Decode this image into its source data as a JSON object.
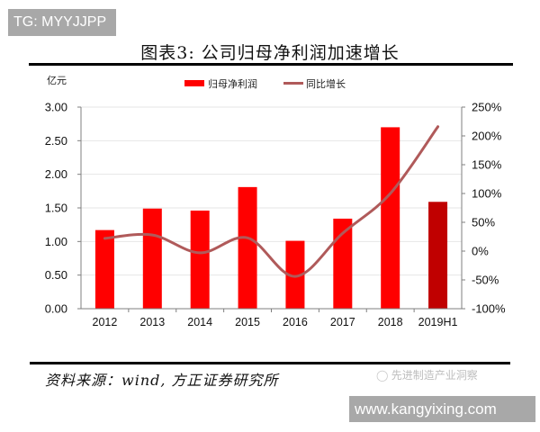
{
  "watermarks": {
    "top_left": "TG: MYYJJPP",
    "bottom_right": "www.kangyixing.com",
    "wechat_account": "先进制造产业洞察"
  },
  "header": {
    "title": "图表3:  公司归母净利润加速增长"
  },
  "footer": {
    "source": "资料来源：wind, 方正证券研究所"
  },
  "colors": {
    "bar": "#ff0000",
    "bar_highlight": "#c00000",
    "line": "#b05a5a",
    "grid": "#e6e6e6",
    "axis": "#7f7f7f"
  },
  "chart_data": {
    "type": "bar",
    "title": "公司归母净利润加速增长",
    "xlabel": "",
    "ylabel": "亿元",
    "y2label": "",
    "categories": [
      "2012",
      "2013",
      "2014",
      "2015",
      "2016",
      "2017",
      "2018",
      "2019H1"
    ],
    "series": [
      {
        "name": "归母净利润",
        "type": "bar",
        "axis": "left",
        "values": [
          1.17,
          1.49,
          1.46,
          1.81,
          1.01,
          1.34,
          2.7,
          1.59
        ]
      },
      {
        "name": "同比增长",
        "type": "line",
        "axis": "right",
        "unit": "%",
        "values": [
          22,
          28,
          -3,
          23,
          -44,
          31,
          100,
          216
        ]
      }
    ],
    "ylim": [
      0,
      3.0
    ],
    "y2lim": [
      -100,
      250
    ],
    "yticks": [
      "0.00",
      "0.50",
      "1.00",
      "1.50",
      "2.00",
      "2.50",
      "3.00"
    ],
    "y2ticks": [
      "-100%",
      "-50%",
      "0%",
      "50%",
      "100%",
      "150%",
      "200%",
      "250%"
    ],
    "grid": true,
    "legend_position": "top-center",
    "legend": [
      "归母净利润",
      "同比增长"
    ]
  }
}
